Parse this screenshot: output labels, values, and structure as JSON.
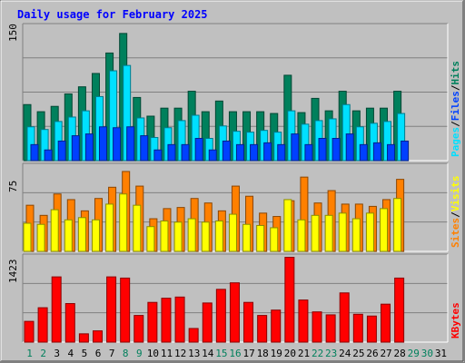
{
  "chart_data": {
    "type": "bar",
    "title": "Daily usage for February 2025",
    "days": [
      "1",
      "2",
      "3",
      "4",
      "5",
      "6",
      "7",
      "8",
      "9",
      "10",
      "11",
      "12",
      "13",
      "14",
      "15",
      "16",
      "17",
      "18",
      "19",
      "20",
      "21",
      "22",
      "23",
      "24",
      "25",
      "26",
      "27",
      "28",
      "29",
      "30",
      "31"
    ],
    "days_with_data": 28,
    "panels": [
      {
        "id": "hits_panel",
        "ymax_label": "150",
        "ymax": 150,
        "side_labels": [
          {
            "text": "Hits",
            "color": "#00805c"
          },
          {
            "text": "Files",
            "color": "#0040ff"
          },
          {
            "text": "Pages",
            "color": "#00e0ff"
          }
        ],
        "series": [
          {
            "name": "Hits",
            "color": "#00805c",
            "values": [
              63,
              55,
              61,
              75,
              83,
              98,
              121,
              143,
              71,
              50,
              59,
              59,
              78,
              55,
              67,
              55,
              55,
              55,
              53,
              96,
              54,
              70,
              56,
              78,
              56,
              59,
              59,
              78
            ]
          },
          {
            "name": "Files",
            "color": "#00e0ff",
            "values": [
              38,
              35,
              44,
              49,
              56,
              72,
              101,
              107,
              48,
              26,
              37,
              45,
              51,
              25,
              39,
              33,
              32,
              34,
              32,
              56,
              41,
              45,
              47,
              63,
              38,
              42,
              44,
              53
            ]
          },
          {
            "name": "Pages",
            "color": "#0040ff",
            "values": [
              18,
              12,
              22,
              28,
              30,
              38,
              37,
              38,
              28,
              12,
              18,
              18,
              25,
              12,
              22,
              18,
              18,
              20,
              18,
              30,
              18,
              25,
              25,
              30,
              18,
              20,
              18,
              22
            ]
          }
        ]
      },
      {
        "id": "visits_panel",
        "ymax_label": "75",
        "ymax": 75,
        "side_labels": [
          {
            "text": "Visits",
            "color": "#ffff00"
          },
          {
            "text": "Sites",
            "color": "#ff8000"
          }
        ],
        "series": [
          {
            "name": "Visits",
            "color": "#ff8000",
            "values": [
              41,
              32,
              51,
              46,
              36,
              47,
              57,
              71,
              58,
              29,
              38,
              39,
              47,
              43,
              36,
              58,
              49,
              34,
              31,
              45,
              66,
              43,
              54,
              42,
              42,
              40,
              46,
              64
            ]
          },
          {
            "name": "Sites",
            "color": "#ffff00",
            "values": [
              25,
              24,
              37,
              28,
              30,
              28,
              42,
              51,
              41,
              22,
              27,
              26,
              29,
              26,
              27,
              33,
              24,
              23,
              21,
              46,
              28,
              32,
              32,
              34,
              29,
              34,
              38,
              47
            ]
          }
        ]
      },
      {
        "id": "kbytes_panel",
        "ymax_label": "1423",
        "ymax": 1423,
        "side_labels": [
          {
            "text": "KBytes",
            "color": "#ff0000"
          }
        ],
        "series": [
          {
            "name": "KBytes",
            "color": "#ff0000",
            "values": [
              350,
              580,
              1100,
              650,
              140,
              190,
              1100,
              1080,
              450,
              670,
              740,
              760,
              230,
              660,
              890,
              1000,
              670,
              450,
              540,
              1430,
              710,
              510,
              460,
              830,
              470,
              440,
              640,
              1080
            ]
          }
        ]
      }
    ],
    "weekend_days": [
      1,
      2,
      8,
      9,
      15,
      16,
      22,
      23,
      29,
      30
    ],
    "weekend_color": "#00805c",
    "weekday_color": "#000000"
  }
}
